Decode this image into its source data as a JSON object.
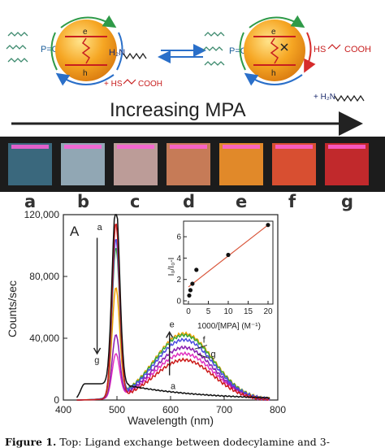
{
  "scheme": {
    "left_ligand": "P=O",
    "right_ligand": "P=O",
    "electron": "e",
    "hole": "h",
    "amine": "H₂N",
    "mpa_left": "+ HS",
    "mpa_left_tail": "COOH",
    "mpa_right": "HS",
    "mpa_right_tail": "COOH",
    "amine_right": "+ H₂N",
    "increasing_label": "Increasing MPA"
  },
  "vials": {
    "labels": [
      "a",
      "b",
      "c",
      "d",
      "e",
      "f",
      "g"
    ],
    "colors": [
      "#3d6f86",
      "#9bb3c1",
      "#caa7a3",
      "#d5835c",
      "#f2922a",
      "#e85433",
      "#cf2a2e"
    ]
  },
  "caption": {
    "bold": "Figure 1.",
    "text": " Top: Ligand exchange between dodecylamine and 3-"
  },
  "chart_data": [
    {
      "type": "line",
      "panel_label": "A",
      "xlabel": "Wavelength (nm)",
      "ylabel": "Counts/sec",
      "xlim": [
        400,
        800
      ],
      "ylim": [
        0,
        120000
      ],
      "xticks": [
        400,
        500,
        600,
        700,
        800
      ],
      "yticks": [
        0,
        40000,
        80000,
        120000
      ],
      "ytick_labels": [
        "0",
        "40,000",
        "80,000",
        "120,000"
      ],
      "annotations": [
        {
          "text": "a",
          "x": 463,
          "y": 110000
        },
        {
          "text": "g",
          "x": 458,
          "y": 24000
        },
        {
          "text": "e",
          "x": 598,
          "y": 47000
        },
        {
          "text": "a",
          "x": 600,
          "y": 7000
        },
        {
          "text": "f",
          "x": 660,
          "y": 37000
        },
        {
          "text": "g",
          "x": 675,
          "y": 28000
        }
      ],
      "series": [
        {
          "label": "a",
          "color": "#111111",
          "peak": 117000,
          "broad": 0,
          "tail": 10500
        },
        {
          "label": "b",
          "color": "#cc1a1a",
          "peak": 113000,
          "broad": 26000,
          "tail": 0
        },
        {
          "label": "c",
          "color": "#4b4be0",
          "peak": 102000,
          "broad": 39000,
          "tail": 0
        },
        {
          "label": "d",
          "color": "#3aa637",
          "peak": 96000,
          "broad": 42000,
          "tail": 0
        },
        {
          "label": "e",
          "color": "#f0a000",
          "peak": 70000,
          "broad": 43000,
          "tail": 0
        },
        {
          "label": "f",
          "color": "#8a1cb0",
          "peak": 40000,
          "broad": 34000,
          "tail": 0
        },
        {
          "label": "g",
          "color": "#e030c0",
          "peak": 28000,
          "broad": 30000,
          "tail": 0
        }
      ]
    },
    {
      "type": "scatter",
      "xlabel": "1000/[MPA] (M⁻¹)",
      "ylabel": "I₀/I₀-I",
      "xlim": [
        0,
        20
      ],
      "ylim": [
        0,
        7
      ],
      "xticks": [
        0,
        5,
        10,
        15,
        20
      ],
      "yticks": [
        0,
        2,
        4,
        6
      ],
      "points": [
        {
          "x": 0.2,
          "y": 0.5
        },
        {
          "x": 0.5,
          "y": 1.0
        },
        {
          "x": 1.0,
          "y": 1.6
        },
        {
          "x": 2.0,
          "y": 2.9
        },
        {
          "x": 10.0,
          "y": 4.3
        },
        {
          "x": 20.0,
          "y": 7.1
        }
      ],
      "fit": {
        "x": [
          0,
          20
        ],
        "y": [
          1.3,
          7.1
        ],
        "color": "#d9553a"
      }
    }
  ]
}
